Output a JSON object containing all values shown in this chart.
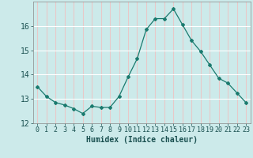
{
  "x": [
    0,
    1,
    2,
    3,
    4,
    5,
    6,
    7,
    8,
    9,
    10,
    11,
    12,
    13,
    14,
    15,
    16,
    17,
    18,
    19,
    20,
    21,
    22,
    23
  ],
  "y": [
    13.5,
    13.1,
    12.85,
    12.75,
    12.6,
    12.4,
    12.7,
    12.65,
    12.65,
    13.1,
    13.9,
    14.65,
    15.85,
    16.3,
    16.3,
    16.7,
    16.05,
    15.4,
    14.95,
    14.4,
    13.85,
    13.65,
    13.25,
    12.85
  ],
  "xlabel": "Humidex (Indice chaleur)",
  "ylim": [
    12,
    17
  ],
  "xlim": [
    -0.5,
    23.5
  ],
  "yticks": [
    12,
    13,
    14,
    15,
    16
  ],
  "xticks": [
    0,
    1,
    2,
    3,
    4,
    5,
    6,
    7,
    8,
    9,
    10,
    11,
    12,
    13,
    14,
    15,
    16,
    17,
    18,
    19,
    20,
    21,
    22,
    23
  ],
  "line_color": "#1a7a6e",
  "marker": "D",
  "marker_size": 2.0,
  "bg_color": "#cceaea",
  "hgrid_color": "#ffffff",
  "vgrid_color": "#e8c8c8",
  "xlabel_fontsize": 7,
  "tick_fontsize": 6
}
